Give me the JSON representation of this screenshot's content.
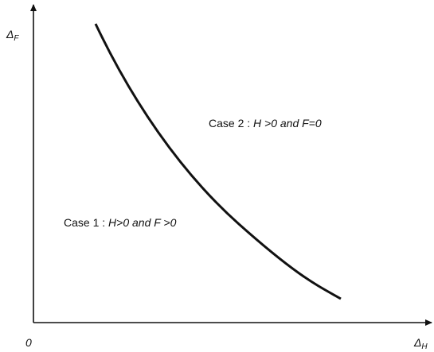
{
  "axes": {
    "y_label": {
      "symbol": "Δ",
      "subscript": "F"
    },
    "x_label": {
      "symbol": "Δ",
      "subscript": "H"
    },
    "origin": "0"
  },
  "regions": [
    {
      "label": "Case 1 :",
      "condition": "H>0 and F >0"
    },
    {
      "label": "Case 2 :",
      "condition": "H >0 and F=0"
    }
  ]
}
